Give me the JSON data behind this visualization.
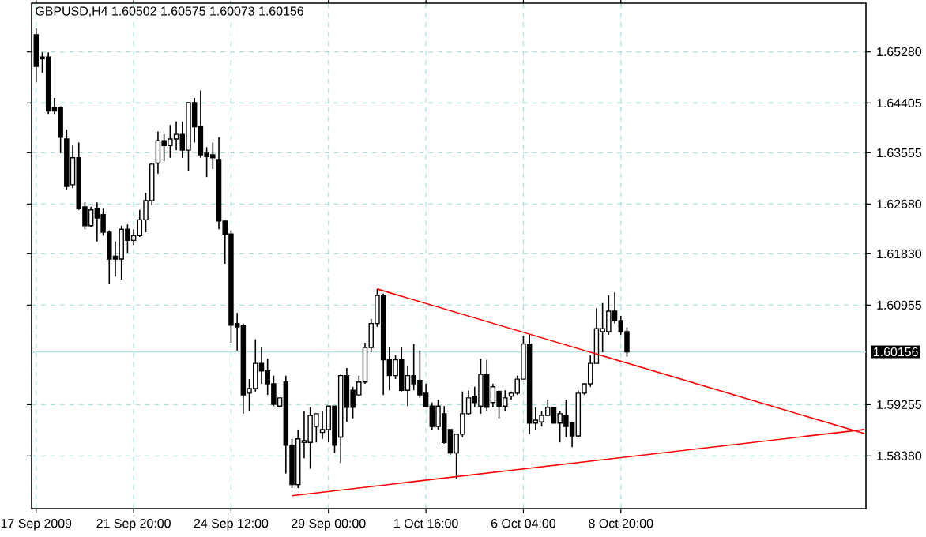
{
  "chart_data": {
    "type": "candlestick",
    "title": "GBPUSD,H4  1.60502 1.60575 1.60073 1.60156",
    "color": "#000000",
    "grid": true,
    "categories": [
      "17 Sep 2009",
      null,
      null,
      null,
      null,
      null,
      null,
      null,
      null,
      null,
      null,
      null,
      null,
      null,
      null,
      null,
      "21 Sep 20:00",
      null,
      null,
      null,
      null,
      null,
      null,
      null,
      null,
      null,
      null,
      null,
      null,
      null,
      null,
      null,
      "24 Sep 12:00",
      null,
      null,
      null,
      null,
      null,
      null,
      null,
      null,
      null,
      null,
      null,
      null,
      null,
      null,
      null,
      "29 Sep 00:00",
      null,
      null,
      null,
      null,
      null,
      null,
      null,
      null,
      null,
      null,
      null,
      null,
      null,
      null,
      null,
      "1 Oct 16:00",
      null,
      null,
      null,
      null,
      null,
      null,
      null,
      null,
      null,
      null,
      null,
      null,
      null,
      null,
      null,
      "6 Oct 04:00",
      null,
      null,
      null,
      null,
      null,
      null,
      null,
      null,
      null,
      null,
      null,
      null,
      null,
      null,
      null,
      "8 Oct 20:00",
      null,
      null,
      null,
      null,
      null,
      null,
      null,
      null,
      null,
      null,
      null,
      null,
      null,
      null,
      null,
      null,
      null,
      null,
      null,
      null,
      null,
      null,
      null,
      null,
      null,
      null,
      null,
      null,
      null,
      null,
      null,
      null,
      null,
      null,
      null,
      null,
      null,
      null,
      null,
      null
    ],
    "ohlc": [
      [
        1.6557,
        1.6568,
        1.6476,
        1.6503
      ],
      [
        1.6516,
        1.6527,
        1.6492,
        1.6519
      ],
      [
        1.6519,
        1.6527,
        1.6422,
        1.6427
      ],
      [
        1.6433,
        1.6449,
        1.6422,
        1.6427
      ],
      [
        1.6433,
        1.6435,
        1.6355,
        1.6382
      ],
      [
        1.6379,
        1.6395,
        1.6293,
        1.6298
      ],
      [
        1.6301,
        1.6368,
        1.6295,
        1.6347
      ],
      [
        1.6347,
        1.6373,
        1.6258,
        1.626
      ],
      [
        1.6263,
        1.6271,
        1.6225,
        1.6231
      ],
      [
        1.6231,
        1.6263,
        1.6228,
        1.6258
      ],
      [
        1.626,
        1.6271,
        1.6204,
        1.6244
      ],
      [
        1.625,
        1.626,
        1.6214,
        1.622
      ],
      [
        1.622,
        1.6223,
        1.6131,
        1.6174
      ],
      [
        1.6179,
        1.6204,
        1.6144,
        1.6174
      ],
      [
        1.6174,
        1.6231,
        1.6139,
        1.6225
      ],
      [
        1.6225,
        1.6233,
        1.6185,
        1.6206
      ],
      [
        1.6206,
        1.6225,
        1.6198,
        1.6214
      ],
      [
        1.6214,
        1.6258,
        1.6212,
        1.6241
      ],
      [
        1.6241,
        1.6287,
        1.622,
        1.6274
      ],
      [
        1.6274,
        1.6338,
        1.6266,
        1.6336
      ],
      [
        1.6338,
        1.6392,
        1.632,
        1.6376
      ],
      [
        1.6376,
        1.6387,
        1.6341,
        1.6368
      ],
      [
        1.6368,
        1.6403,
        1.6347,
        1.6379
      ],
      [
        1.6379,
        1.6409,
        1.636,
        1.6387
      ],
      [
        1.6387,
        1.6409,
        1.6347,
        1.636
      ],
      [
        1.636,
        1.6441,
        1.6325,
        1.6441
      ],
      [
        1.6441,
        1.6449,
        1.6373,
        1.64
      ],
      [
        1.64,
        1.6462,
        1.6347,
        1.6352
      ],
      [
        1.6355,
        1.6365,
        1.6314,
        1.6349
      ],
      [
        1.6352,
        1.6373,
        1.6328,
        1.6347
      ],
      [
        1.6344,
        1.6382,
        1.6225,
        1.6239
      ],
      [
        1.6239,
        1.6239,
        1.6166,
        1.6217
      ],
      [
        1.6217,
        1.6223,
        1.6031,
        1.6061
      ],
      [
        1.6064,
        1.6082,
        1.6018,
        1.6058
      ],
      [
        1.6061,
        1.6064,
        1.591,
        1.5942
      ],
      [
        1.5945,
        1.5969,
        1.5915,
        1.5953
      ],
      [
        1.5953,
        1.6037,
        1.5948,
        1.5996
      ],
      [
        1.5996,
        1.6023,
        1.5961,
        1.5983
      ],
      [
        1.5983,
        1.6004,
        1.5942,
        1.5961
      ],
      [
        1.5961,
        1.5975,
        1.5923,
        1.5926
      ],
      [
        1.5923,
        1.5937,
        1.5921,
        1.5937
      ],
      [
        1.5964,
        1.5975,
        1.5808,
        1.5856
      ],
      [
        1.5856,
        1.5867,
        1.5783,
        1.5789
      ],
      [
        1.5789,
        1.5883,
        1.5783,
        1.5867
      ],
      [
        1.5861,
        1.5915,
        1.5834,
        1.5864
      ],
      [
        1.5861,
        1.5921,
        1.5816,
        1.5907
      ],
      [
        1.5888,
        1.591,
        1.5861,
        1.591
      ],
      [
        1.5878,
        1.5915,
        1.5867,
        1.5883
      ],
      [
        1.5883,
        1.5923,
        1.5861,
        1.5923
      ],
      [
        1.5923,
        1.5923,
        1.5843,
        1.5856
      ],
      [
        1.587,
        1.5977,
        1.5826,
        1.5975
      ],
      [
        1.5975,
        1.5988,
        1.5896,
        1.5921
      ],
      [
        1.595,
        1.5956,
        1.5902,
        1.5921
      ],
      [
        1.5942,
        1.5975,
        1.594,
        1.5964
      ],
      [
        1.5964,
        1.6031,
        1.5961,
        1.6023
      ],
      [
        1.6023,
        1.6072,
        1.6015,
        1.6064
      ],
      [
        1.6064,
        1.6123,
        1.6058,
        1.6112
      ],
      [
        1.6112,
        1.6115,
        1.5942,
        1.6002
      ],
      [
        1.6002,
        1.6023,
        1.595,
        1.5975
      ],
      [
        1.5975,
        1.601,
        1.5969,
        1.6002
      ],
      [
        1.6002,
        1.6023,
        1.5948,
        1.595
      ],
      [
        1.595,
        1.5991,
        1.5923,
        1.5975
      ],
      [
        1.5975,
        1.6029,
        1.595,
        1.5961
      ],
      [
        1.5967,
        1.6018,
        1.5937,
        1.5942
      ],
      [
        1.5945,
        1.5961,
        1.5921,
        1.5923
      ],
      [
        1.5923,
        1.5929,
        1.5883,
        1.5888
      ],
      [
        1.5888,
        1.5934,
        1.5883,
        1.5923
      ],
      [
        1.591,
        1.5923,
        1.5859,
        1.5861
      ],
      [
        1.5883,
        1.5883,
        1.584,
        1.5843
      ],
      [
        1.5843,
        1.5875,
        1.5799,
        1.5875
      ],
      [
        1.5875,
        1.5948,
        1.587,
        1.591
      ],
      [
        1.591,
        1.595,
        1.5907,
        1.5937
      ],
      [
        1.594,
        1.5956,
        1.5921,
        1.5929
      ],
      [
        1.5923,
        1.6004,
        1.591,
        1.5977
      ],
      [
        1.5977,
        1.6002,
        1.5915,
        1.5921
      ],
      [
        1.5929,
        1.5961,
        1.5921,
        1.5956
      ],
      [
        1.5948,
        1.595,
        1.5902,
        1.5923
      ],
      [
        1.5923,
        1.595,
        1.5915,
        1.5937
      ],
      [
        1.594,
        1.5948,
        1.5934,
        1.5945
      ],
      [
        1.5945,
        1.5975,
        1.5942,
        1.5969
      ],
      [
        1.5969,
        1.6042,
        1.5969,
        1.6029
      ],
      [
        1.6029,
        1.6045,
        1.5875,
        1.5894
      ],
      [
        1.5894,
        1.5921,
        1.5883,
        1.5899
      ],
      [
        1.5896,
        1.5915,
        1.5888,
        1.5907
      ],
      [
        1.5907,
        1.5934,
        1.5907,
        1.5921
      ],
      [
        1.5921,
        1.5921,
        1.5894,
        1.5894
      ],
      [
        1.5894,
        1.5915,
        1.5861,
        1.591
      ],
      [
        1.5907,
        1.5934,
        1.587,
        1.5888
      ],
      [
        1.5894,
        1.5894,
        1.5853,
        1.5872
      ],
      [
        1.5872,
        1.595,
        1.587,
        1.5945
      ],
      [
        1.5945,
        1.5961,
        1.5942,
        1.5961
      ],
      [
        1.5961,
        1.601,
        1.5956,
        1.5996
      ],
      [
        1.5996,
        1.609,
        1.5996,
        1.6055
      ],
      [
        1.605,
        1.6099,
        1.6015,
        1.6055
      ],
      [
        1.605,
        1.6112,
        1.6045,
        1.6085
      ],
      [
        1.6085,
        1.6117,
        1.6064,
        1.6069
      ],
      [
        1.6069,
        1.6077,
        1.6045,
        1.605
      ],
      [
        1.60502,
        1.60575,
        1.60073,
        1.60156
      ],
      null,
      null,
      null,
      null,
      null,
      null,
      null,
      null,
      null,
      null,
      null,
      null,
      null,
      null,
      null,
      null,
      null,
      null,
      null,
      null,
      null,
      null,
      null,
      null,
      null,
      null,
      null,
      null,
      null,
      null,
      null,
      null,
      null,
      null,
      null,
      null,
      null,
      null,
      null
    ],
    "series": [
      {
        "type": "line",
        "color": "#ff0000",
        "values": [
          null,
          null,
          null,
          null,
          null,
          null,
          null,
          null,
          null,
          null,
          null,
          null,
          null,
          null,
          null,
          null,
          null,
          null,
          null,
          null,
          null,
          null,
          null,
          null,
          null,
          null,
          null,
          null,
          null,
          null,
          null,
          null,
          null,
          null,
          null,
          null,
          null,
          null,
          null,
          null,
          null,
          null,
          null,
          null,
          null,
          null,
          null,
          null,
          null,
          null,
          null,
          null,
          null,
          null,
          null,
          null,
          1.6123,
          null,
          null,
          null,
          null,
          null,
          null,
          null,
          null,
          null,
          null,
          null,
          null,
          null,
          null,
          null,
          null,
          null,
          null,
          null,
          null,
          null,
          null,
          null,
          null,
          null,
          null,
          null,
          null,
          null,
          null,
          null,
          null,
          null,
          null,
          null,
          null,
          null,
          null,
          null,
          null,
          null,
          null,
          null,
          null,
          null,
          null,
          null,
          null,
          null,
          null,
          null,
          null,
          null,
          null,
          null,
          null,
          null,
          null,
          null,
          null,
          null,
          null,
          null,
          null,
          null,
          null,
          null,
          null,
          null,
          null,
          null,
          null,
          null,
          null,
          null,
          null,
          null,
          null,
          null,
          1.5876
        ]
      },
      {
        "type": "line",
        "color": "#ff0000",
        "values": [
          null,
          null,
          null,
          null,
          null,
          null,
          null,
          null,
          null,
          null,
          null,
          null,
          null,
          null,
          null,
          null,
          null,
          null,
          null,
          null,
          null,
          null,
          null,
          null,
          null,
          null,
          null,
          null,
          null,
          null,
          null,
          null,
          null,
          null,
          null,
          null,
          null,
          null,
          null,
          null,
          null,
          null,
          1.577,
          null,
          null,
          null,
          null,
          null,
          null,
          null,
          null,
          null,
          null,
          null,
          null,
          null,
          null,
          null,
          null,
          null,
          null,
          null,
          null,
          null,
          null,
          null,
          null,
          null,
          null,
          null,
          null,
          null,
          null,
          null,
          null,
          null,
          null,
          null,
          null,
          null,
          null,
          null,
          null,
          null,
          null,
          null,
          null,
          null,
          null,
          null,
          null,
          null,
          null,
          null,
          null,
          null,
          null,
          null,
          null,
          null,
          null,
          null,
          null,
          null,
          null,
          null,
          null,
          null,
          null,
          null,
          null,
          null,
          null,
          null,
          null,
          null,
          null,
          null,
          null,
          null,
          null,
          null,
          null,
          null,
          null,
          null,
          null,
          null,
          null,
          null,
          null,
          null,
          null,
          null,
          null,
          null,
          1.5883
        ]
      }
    ],
    "ref_lines": [
      {
        "axis": "y",
        "value": 1.60156,
        "label": "1.60156",
        "color": "#b0e0e6"
      }
    ],
    "ylim": [
      1.5748,
      1.6611
    ],
    "yticks": [
      {
        "value": 1.6528,
        "label": "1.65280"
      },
      1.64405,
      1.63555,
      {
        "value": 1.6268,
        "label": "1.62680"
      },
      {
        "value": 1.6183,
        "label": "1.61830"
      },
      1.60955,
      1.59255,
      {
        "value": 1.5838,
        "label": "1.58380"
      }
    ]
  }
}
